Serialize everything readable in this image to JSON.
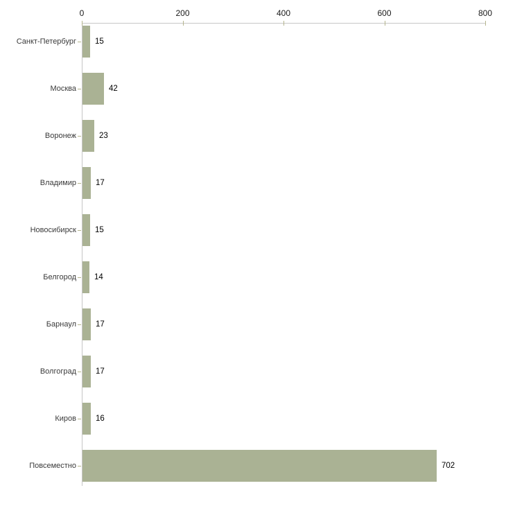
{
  "chart_data": {
    "type": "bar",
    "orientation": "horizontal",
    "title": "",
    "xlabel": "",
    "ylabel": "",
    "categories": [
      "Санкт-Петербург",
      "Москва",
      "Воронеж",
      "Владимир",
      "Новосибирск",
      "Белгород",
      "Барнаул",
      "Волгоград",
      "Киров",
      "Повсеместно"
    ],
    "values": [
      15,
      42,
      23,
      17,
      15,
      14,
      17,
      17,
      16,
      702
    ],
    "x_ticks": [
      0,
      200,
      400,
      600,
      800
    ],
    "xlim": [
      0,
      800
    ],
    "grid": false,
    "legend": false,
    "axis_position": "top",
    "colors": {
      "bar_fill": "#aab294",
      "axis_line": "#c6c6c6",
      "tick_mark": "#b5b58d",
      "category_text": "#3a3a3a",
      "value_text": "#000000",
      "background": "#ffffff"
    }
  }
}
